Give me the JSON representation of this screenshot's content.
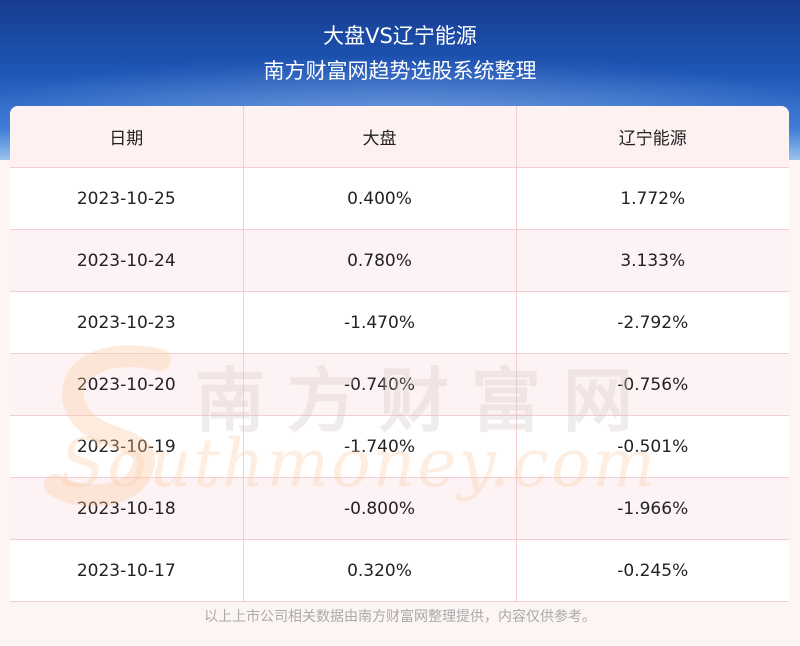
{
  "header": {
    "title_line1": "大盘VS辽宁能源",
    "title_line2": "南方财富网趋势选股系统整理"
  },
  "table": {
    "columns": [
      "日期",
      "大盘",
      "辽宁能源"
    ],
    "rows": [
      {
        "date": "2023-10-25",
        "market": "0.400%",
        "stock": "1.772%"
      },
      {
        "date": "2023-10-24",
        "market": "0.780%",
        "stock": "3.133%"
      },
      {
        "date": "2023-10-23",
        "market": "-1.470%",
        "stock": "-2.792%"
      },
      {
        "date": "2023-10-20",
        "market": "-0.740%",
        "stock": "-0.756%"
      },
      {
        "date": "2023-10-19",
        "market": "-1.740%",
        "stock": "-0.501%"
      },
      {
        "date": "2023-10-18",
        "market": "-0.800%",
        "stock": "-1.966%"
      },
      {
        "date": "2023-10-17",
        "market": "0.320%",
        "stock": "-0.245%"
      }
    ]
  },
  "watermark": {
    "cn": "南方财富网",
    "en": "Southmoney.com"
  },
  "footer": {
    "text": "以上上市公司相关数据由南方财富网整理提供，内容仅供参考。"
  },
  "colors": {
    "header_top": "#173d8f",
    "header_bottom": "#9cc3ef",
    "grid_line": "#f2cdd2",
    "row_alt": "#fdf3f4"
  }
}
